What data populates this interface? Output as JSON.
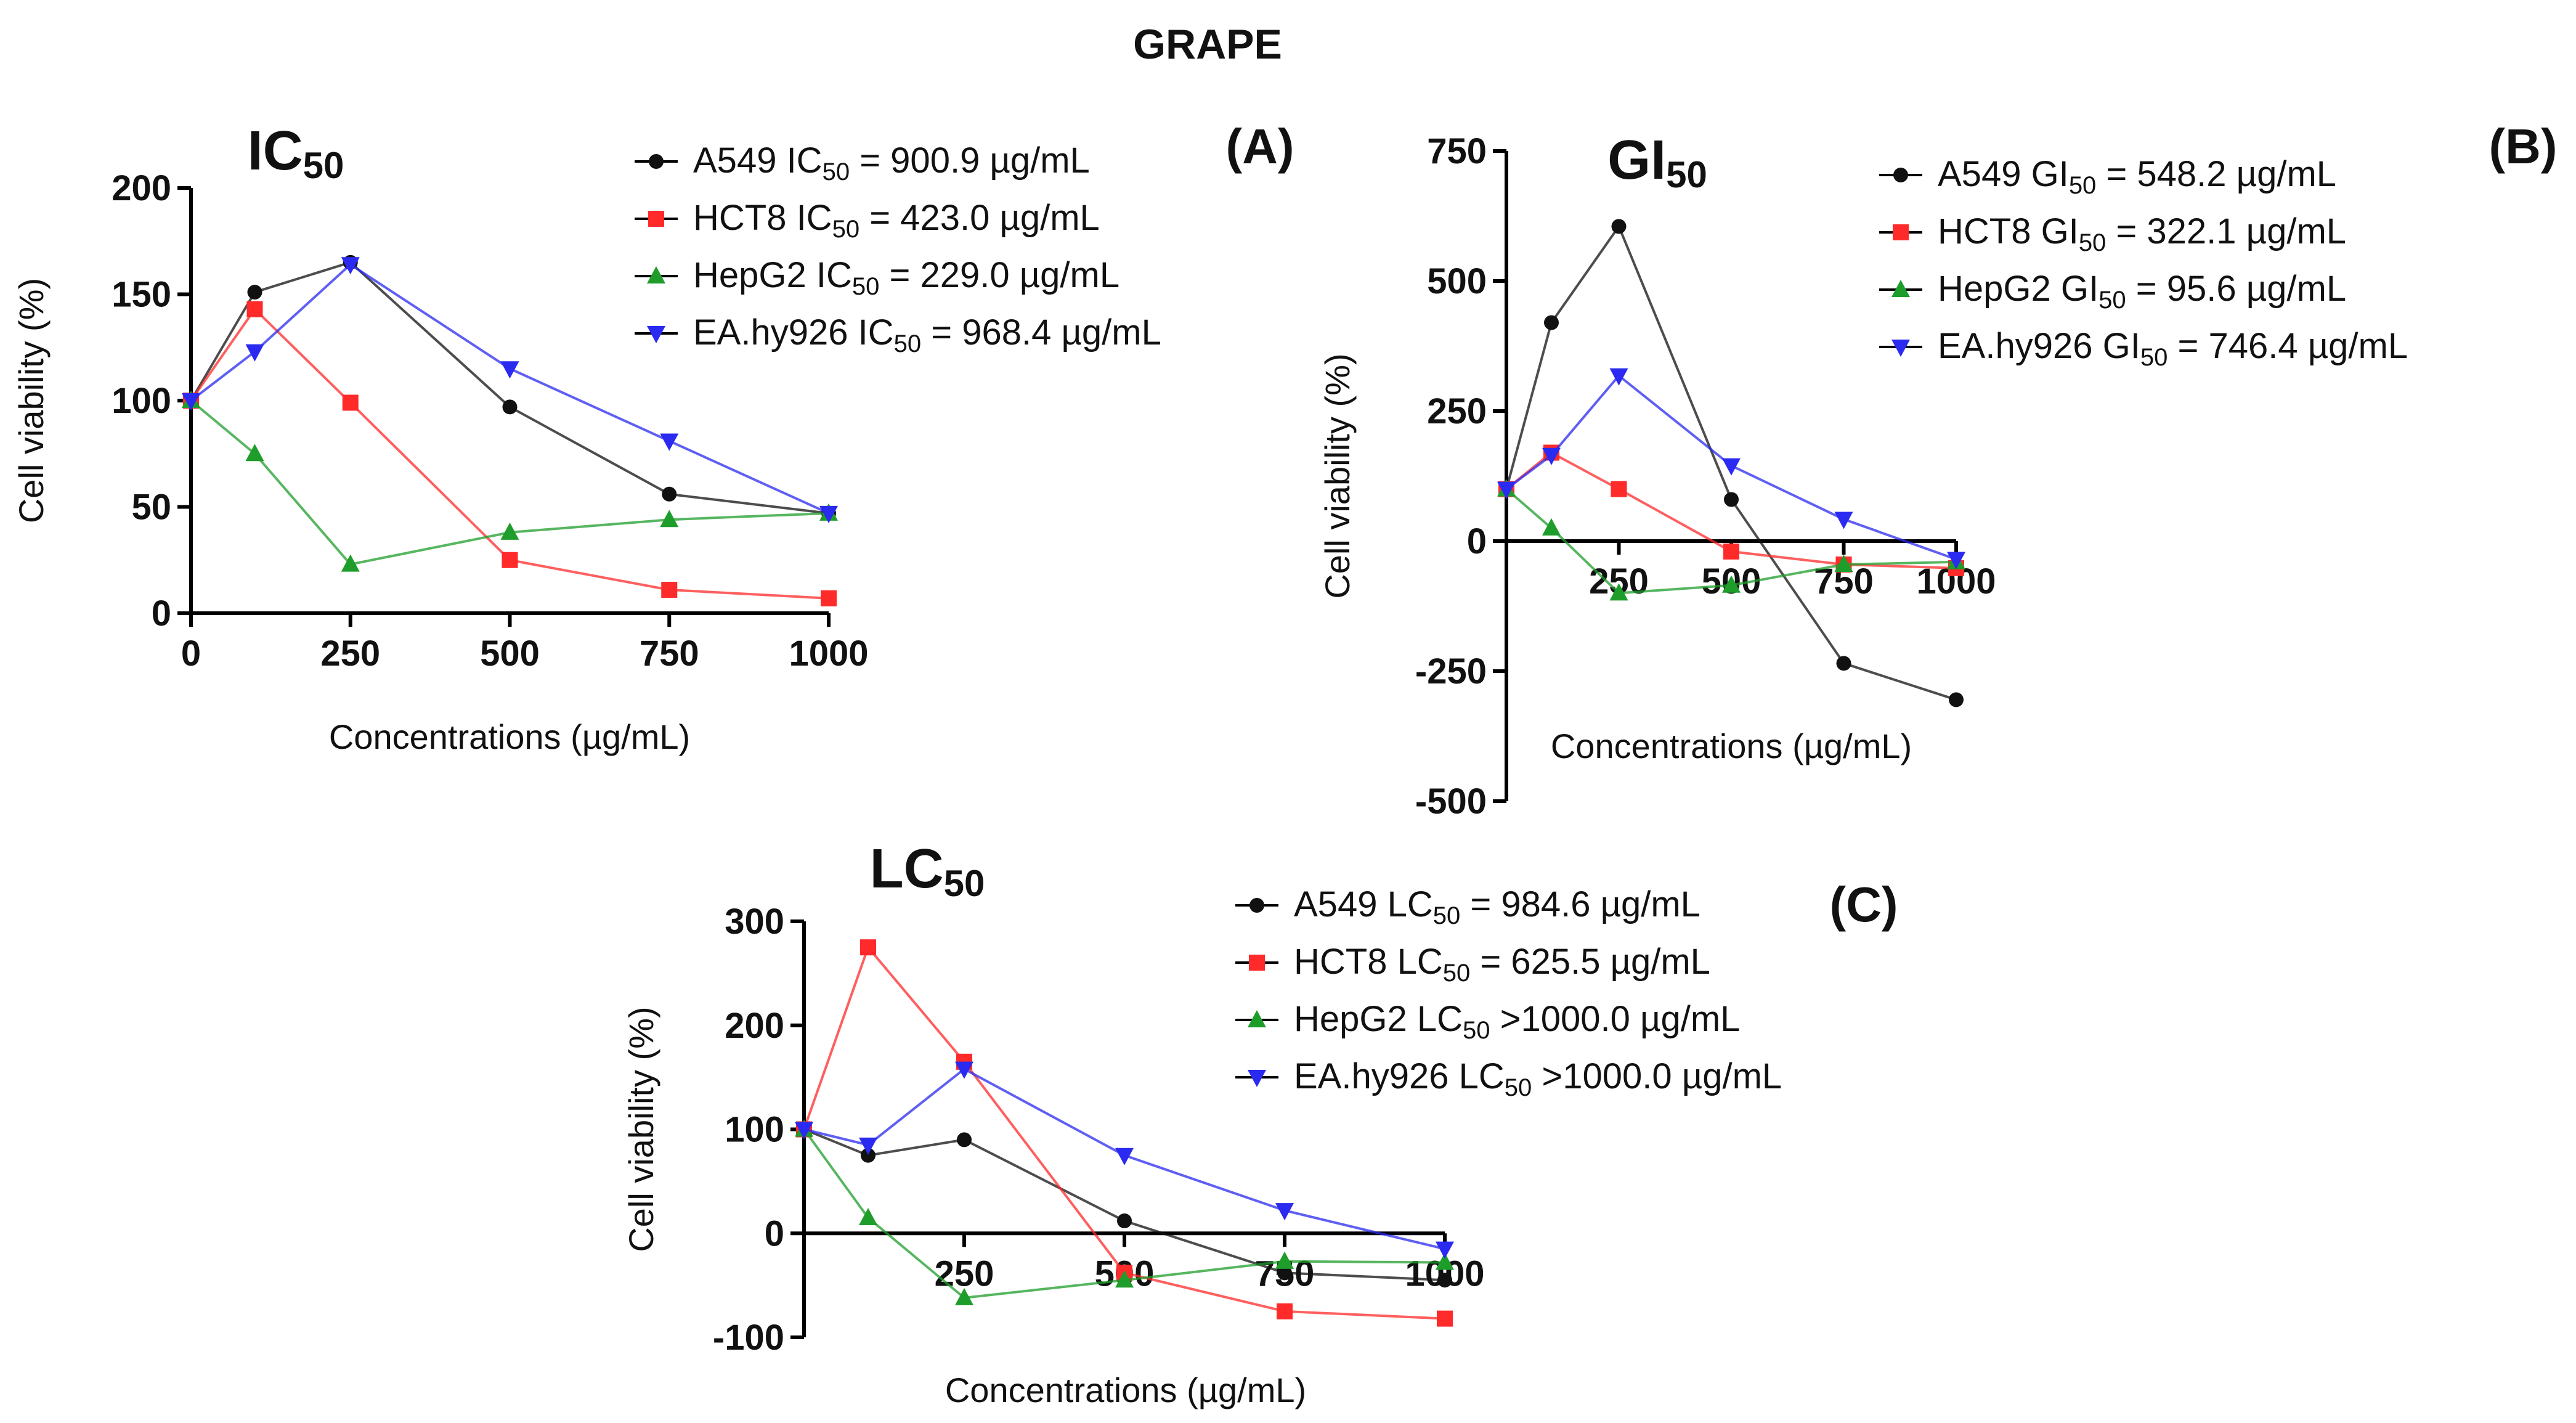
{
  "main_title": "GRAPE",
  "colors": {
    "A549": "#111111",
    "HCT8": "#ff2a2a",
    "HepG2": "#1f9d2b",
    "EA.hy926": "#2a2af0"
  },
  "chart_data": [
    {
      "type": "line",
      "panel": "(A)",
      "title_main": "IC",
      "title_sub": "50",
      "xlabel": "Concentrations (µg/mL)",
      "ylabel": "Cell viability (%)",
      "x": [
        0,
        100,
        250,
        500,
        750,
        1000
      ],
      "xticks": [
        0,
        250,
        500,
        750,
        1000
      ],
      "yticks": [
        0,
        50,
        100,
        150,
        200
      ],
      "ylim": [
        0,
        200
      ],
      "xlim": [
        0,
        1000
      ],
      "legend_position": "top-right",
      "series": [
        {
          "name": "A549",
          "marker": "circle",
          "color": "#111111",
          "values": [
            100,
            151,
            165,
            97,
            56,
            47
          ],
          "legend_pre": "A549 IC",
          "legend_sub": "50",
          "legend_post": " = 900.9 µg/mL"
        },
        {
          "name": "HCT8",
          "marker": "square",
          "color": "#ff2a2a",
          "values": [
            100,
            143,
            99,
            25,
            11,
            7
          ],
          "legend_pre": "HCT8 IC",
          "legend_sub": "50",
          "legend_post": " = 423.0 µg/mL"
        },
        {
          "name": "HepG2",
          "marker": "triangle-up",
          "color": "#1f9d2b",
          "values": [
            100,
            75,
            23,
            38,
            44,
            47
          ],
          "legend_pre": "HepG2 IC",
          "legend_sub": "50",
          "legend_post": " = 229.0 µg/mL"
        },
        {
          "name": "EA.hy926",
          "marker": "triangle-down",
          "color": "#2a2af0",
          "values": [
            100,
            123,
            164,
            115,
            81,
            47
          ],
          "legend_pre": "EA.hy926 IC",
          "legend_sub": "50",
          "legend_post": " = 968.4 µg/mL"
        }
      ]
    },
    {
      "type": "line",
      "panel": "(B)",
      "title_main": "GI",
      "title_sub": "50",
      "xlabel": "Concentrations (µg/mL)",
      "ylabel": "Cell viability (%)",
      "x": [
        0,
        100,
        250,
        500,
        750,
        1000
      ],
      "xticks": [
        250,
        500,
        750,
        1000
      ],
      "yticks": [
        -500,
        -250,
        0,
        250,
        500,
        750
      ],
      "ylim": [
        -500,
        750
      ],
      "xlim": [
        0,
        1000
      ],
      "legend_position": "top-right",
      "series": [
        {
          "name": "A549",
          "marker": "circle",
          "color": "#111111",
          "values": [
            100,
            420,
            605,
            80,
            -235,
            -305
          ],
          "legend_pre": "A549 GI",
          "legend_sub": "50",
          "legend_post": " = 548.2 µg/mL"
        },
        {
          "name": "HCT8",
          "marker": "square",
          "color": "#ff2a2a",
          "values": [
            100,
            170,
            100,
            -20,
            -45,
            -52
          ],
          "legend_pre": "HCT8 GI",
          "legend_sub": "50",
          "legend_post": " = 322.1 µg/mL"
        },
        {
          "name": "HepG2",
          "marker": "triangle-up",
          "color": "#1f9d2b",
          "values": [
            100,
            25,
            -100,
            -85,
            -45,
            -40
          ],
          "legend_pre": "HepG2 GI",
          "legend_sub": "50",
          "legend_post": " = 95.6 µg/mL"
        },
        {
          "name": "EA.hy926",
          "marker": "triangle-down",
          "color": "#2a2af0",
          "values": [
            100,
            165,
            318,
            145,
            42,
            -35
          ],
          "legend_pre": "EA.hy926 GI",
          "legend_sub": "50",
          "legend_post": " = 746.4 µg/mL"
        }
      ]
    },
    {
      "type": "line",
      "panel": "(C)",
      "title_main": "LC",
      "title_sub": "50",
      "xlabel": "Concentrations (µg/mL)",
      "ylabel": "Cell viability (%)",
      "x": [
        0,
        100,
        250,
        500,
        750,
        1000
      ],
      "xticks": [
        250,
        500,
        750,
        1000
      ],
      "yticks": [
        -100,
        0,
        100,
        200,
        300
      ],
      "ylim": [
        -100,
        300
      ],
      "xlim": [
        0,
        1000
      ],
      "legend_position": "top-right",
      "series": [
        {
          "name": "A549",
          "marker": "circle",
          "color": "#111111",
          "values": [
            100,
            75,
            90,
            12,
            -38,
            -45
          ],
          "legend_pre": "A549 LC",
          "legend_sub": "50",
          "legend_post": " = 984.6 µg/mL"
        },
        {
          "name": "HCT8",
          "marker": "square",
          "color": "#ff2a2a",
          "values": [
            100,
            275,
            165,
            -38,
            -75,
            -82
          ],
          "legend_pre": "HCT8  LC",
          "legend_sub": "50",
          "legend_post": " = 625.5 µg/mL"
        },
        {
          "name": "HepG2",
          "marker": "triangle-up",
          "color": "#1f9d2b",
          "values": [
            100,
            15,
            -62,
            -45,
            -27,
            -28
          ],
          "legend_pre": "HepG2  LC",
          "legend_sub": "50",
          "legend_post": " >1000.0 µg/mL"
        },
        {
          "name": "EA.hy926",
          "marker": "triangle-down",
          "color": "#2a2af0",
          "values": [
            100,
            85,
            158,
            75,
            22,
            -15
          ],
          "legend_pre": "EA.hy926 LC",
          "legend_sub": "50",
          "legend_post": " >1000.0 µg/mL"
        }
      ]
    }
  ]
}
